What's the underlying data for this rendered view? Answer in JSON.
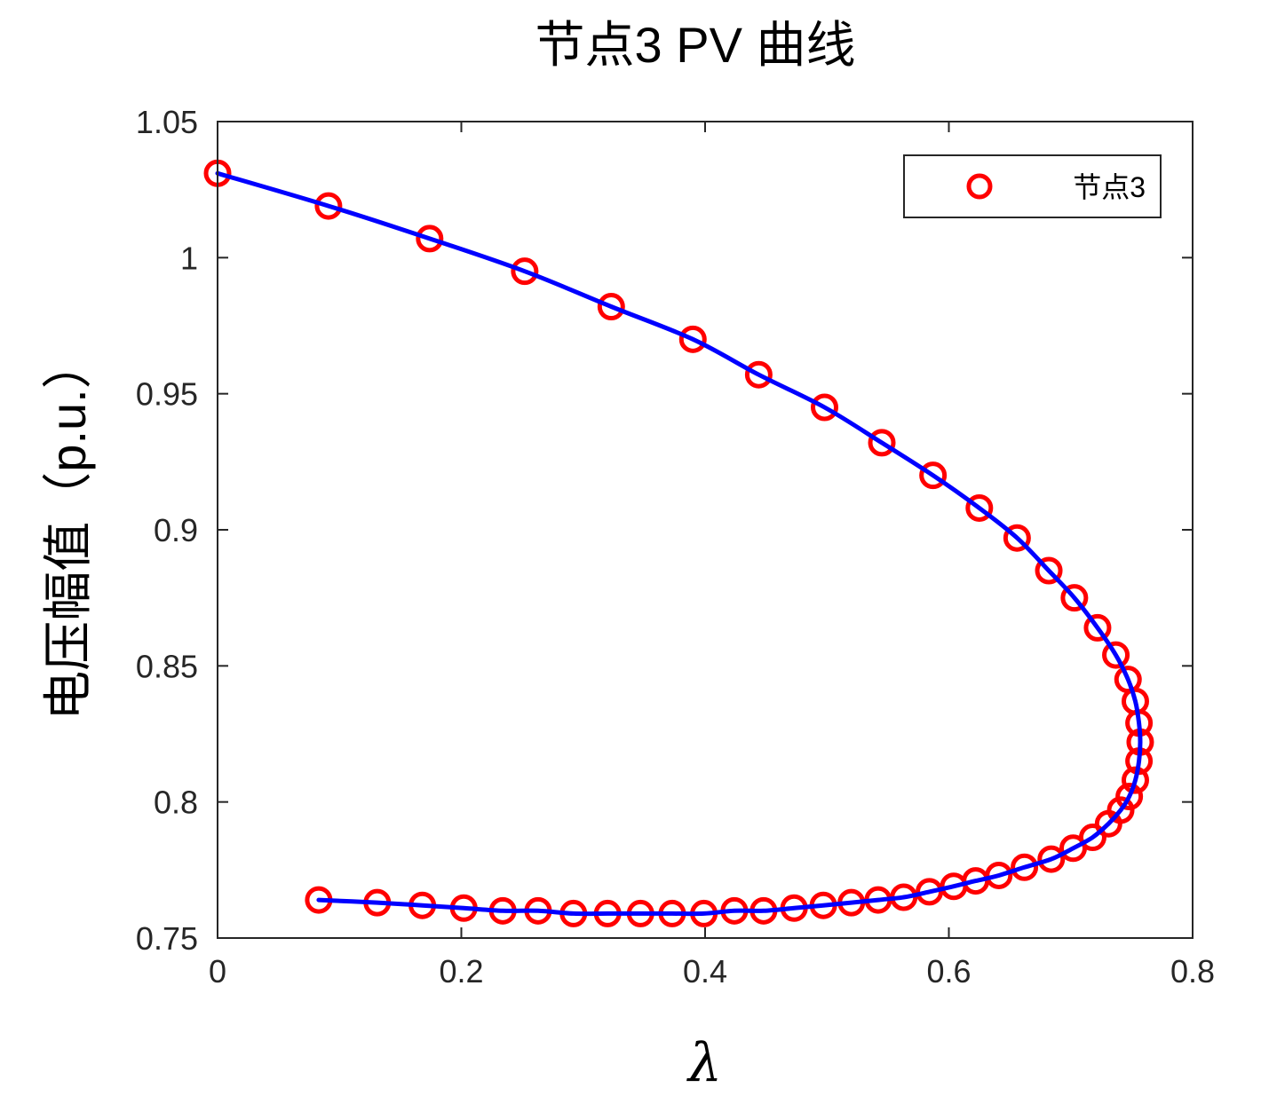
{
  "chart_data": {
    "type": "scatter",
    "title": "节点3 PV 曲线",
    "xlabel": "λ",
    "ylabel": "电压幅值（p.u.）",
    "xlim": [
      0,
      0.8
    ],
    "ylim": [
      0.75,
      1.05
    ],
    "x_ticks": [
      "0",
      "0.2",
      "0.4",
      "0.6",
      "0.8"
    ],
    "y_ticks": [
      "0.75",
      "0.8",
      "0.85",
      "0.9",
      "0.95",
      "1",
      "1.05"
    ],
    "grid": false,
    "legend": {
      "position": "top-right",
      "entries": [
        "节点3"
      ]
    },
    "series": [
      {
        "name": "节点3",
        "style": "circle-markers",
        "color": "#ff0000",
        "x": [
          0.0,
          0.091,
          0.174,
          0.252,
          0.323,
          0.39,
          0.444,
          0.498,
          0.545,
          0.587,
          0.625,
          0.656,
          0.682,
          0.703,
          0.722,
          0.737,
          0.747,
          0.753,
          0.756,
          0.757,
          0.756,
          0.753,
          0.748,
          0.741,
          0.731,
          0.718,
          0.702,
          0.684,
          0.662,
          0.641,
          0.622,
          0.604,
          0.584,
          0.563,
          0.542,
          0.52,
          0.497,
          0.473,
          0.448,
          0.424,
          0.399,
          0.373,
          0.347,
          0.32,
          0.292,
          0.263,
          0.234,
          0.202,
          0.168,
          0.131,
          0.083
        ],
        "y": [
          1.031,
          1.019,
          1.007,
          0.995,
          0.982,
          0.97,
          0.957,
          0.945,
          0.932,
          0.92,
          0.908,
          0.897,
          0.885,
          0.875,
          0.864,
          0.854,
          0.845,
          0.837,
          0.829,
          0.822,
          0.815,
          0.808,
          0.802,
          0.797,
          0.792,
          0.787,
          0.783,
          0.779,
          0.776,
          0.773,
          0.771,
          0.769,
          0.767,
          0.765,
          0.764,
          0.763,
          0.762,
          0.761,
          0.76,
          0.76,
          0.759,
          0.759,
          0.759,
          0.759,
          0.759,
          0.76,
          0.76,
          0.761,
          0.762,
          0.763,
          0.764
        ]
      },
      {
        "style": "line",
        "color": "#0000ff",
        "x": [
          0.0,
          0.091,
          0.174,
          0.252,
          0.323,
          0.39,
          0.444,
          0.498,
          0.545,
          0.587,
          0.625,
          0.656,
          0.682,
          0.703,
          0.722,
          0.737,
          0.747,
          0.753,
          0.756,
          0.757,
          0.756,
          0.753,
          0.748,
          0.741,
          0.731,
          0.718,
          0.702,
          0.684,
          0.662,
          0.641,
          0.622,
          0.604,
          0.584,
          0.563,
          0.542,
          0.52,
          0.497,
          0.473,
          0.448,
          0.424,
          0.399,
          0.373,
          0.347,
          0.32,
          0.292,
          0.263,
          0.234,
          0.202,
          0.168,
          0.131,
          0.083
        ],
        "y": [
          1.031,
          1.019,
          1.007,
          0.995,
          0.982,
          0.97,
          0.957,
          0.945,
          0.932,
          0.92,
          0.908,
          0.897,
          0.885,
          0.875,
          0.864,
          0.854,
          0.845,
          0.837,
          0.829,
          0.822,
          0.815,
          0.808,
          0.802,
          0.797,
          0.792,
          0.787,
          0.783,
          0.779,
          0.776,
          0.773,
          0.771,
          0.769,
          0.767,
          0.765,
          0.764,
          0.763,
          0.762,
          0.761,
          0.76,
          0.76,
          0.759,
          0.759,
          0.759,
          0.759,
          0.759,
          0.76,
          0.76,
          0.761,
          0.762,
          0.763,
          0.764
        ]
      }
    ]
  }
}
